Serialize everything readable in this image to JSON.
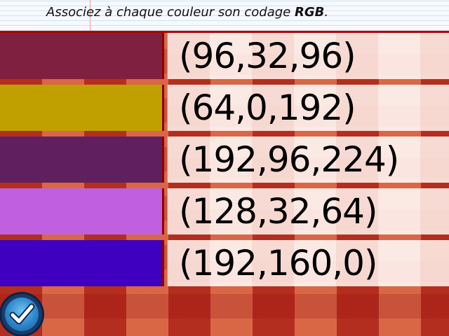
{
  "instruction": {
    "text_before": "Associez à chaque couleur son codage ",
    "text_bold": "RGB",
    "text_after": "."
  },
  "rows": [
    {
      "swatch_color": "#7f2040",
      "code": "(96,32,96)"
    },
    {
      "swatch_color": "#c0a000",
      "code": "(64,0,192)"
    },
    {
      "swatch_color": "#602060",
      "code": "(192,96,224)"
    },
    {
      "swatch_color": "#c060e0",
      "code": "(128,32,64)"
    },
    {
      "swatch_color": "#4000c0",
      "code": "(192,160,0)"
    }
  ],
  "validate_button": {
    "icon": "checkmark-icon"
  }
}
